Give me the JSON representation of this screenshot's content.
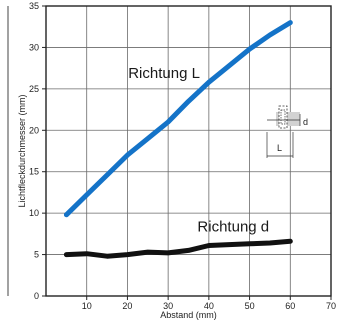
{
  "chart_data": {
    "type": "line",
    "title": "",
    "xlabel": "Abstand (mm)",
    "ylabel": "Lichtfleckdurchmesser (mm)",
    "xlim": [
      0,
      70
    ],
    "ylim": [
      0,
      35
    ],
    "xticks": [
      10,
      20,
      30,
      40,
      50,
      60,
      70
    ],
    "yticks": [
      0,
      5,
      10,
      15,
      20,
      25,
      30,
      35
    ],
    "grid": true,
    "series": [
      {
        "name": "Richtung L",
        "color": "#1473c8",
        "points": [
          [
            5,
            9.8
          ],
          [
            10,
            12.2
          ],
          [
            15,
            14.6
          ],
          [
            20,
            17.0
          ],
          [
            25,
            19.0
          ],
          [
            30,
            21.0
          ],
          [
            35,
            23.5
          ],
          [
            40,
            25.8
          ],
          [
            45,
            27.8
          ],
          [
            50,
            29.8
          ],
          [
            55,
            31.5
          ],
          [
            60,
            33.0
          ]
        ]
      },
      {
        "name": "Richtung d",
        "color": "#111111",
        "points": [
          [
            5,
            5.0
          ],
          [
            10,
            5.1
          ],
          [
            15,
            4.8
          ],
          [
            20,
            5.0
          ],
          [
            25,
            5.3
          ],
          [
            30,
            5.2
          ],
          [
            35,
            5.5
          ],
          [
            40,
            6.1
          ],
          [
            45,
            6.2
          ],
          [
            50,
            6.3
          ],
          [
            55,
            6.4
          ],
          [
            60,
            6.6
          ]
        ]
      }
    ],
    "inset_diagram": {
      "labels": [
        "d",
        "L"
      ]
    }
  }
}
